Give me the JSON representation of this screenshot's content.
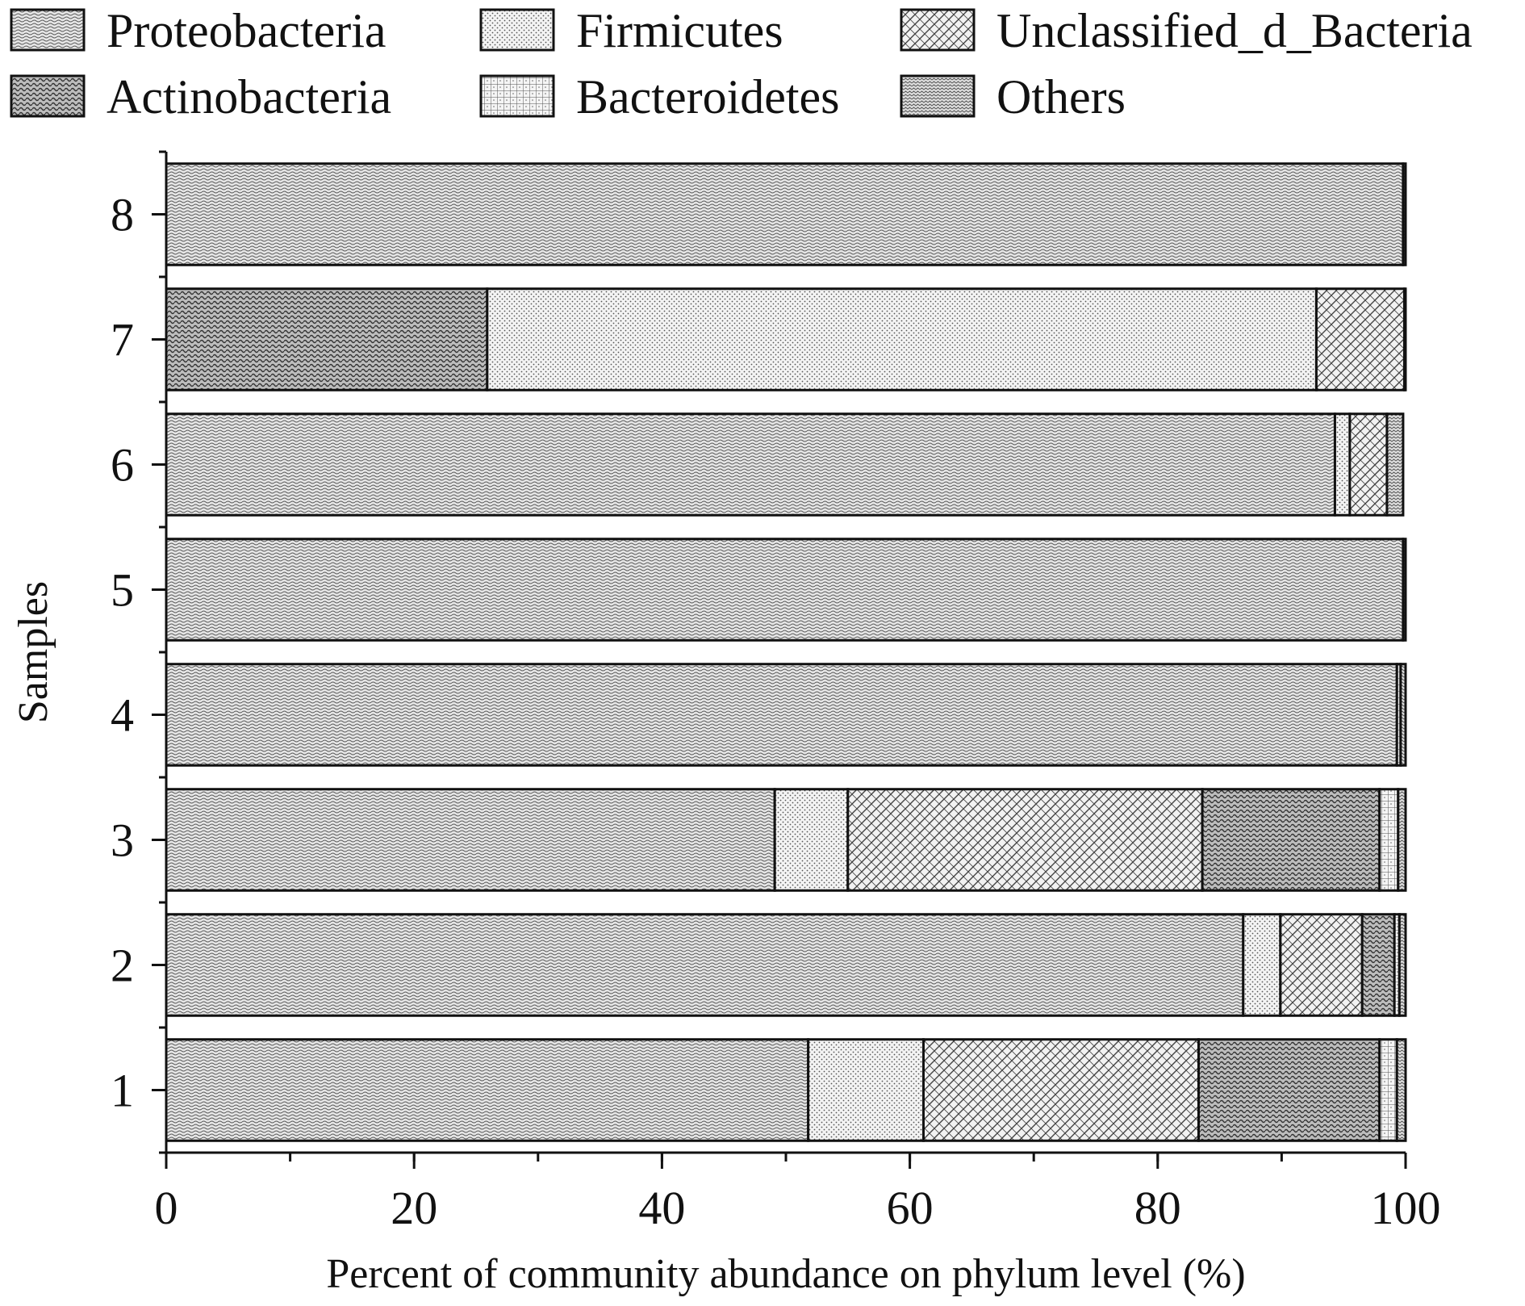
{
  "chart_data": {
    "type": "bar",
    "orientation": "horizontal",
    "stacked": true,
    "xlabel": "Percent of community abundance on phylum level (%)",
    "ylabel": "Samples",
    "xlim": [
      0,
      100
    ],
    "x_ticks": [
      0,
      20,
      40,
      60,
      80,
      100
    ],
    "categories": [
      "1",
      "2",
      "3",
      "4",
      "5",
      "6",
      "7",
      "8"
    ],
    "legend_position": "top",
    "grid": false,
    "series": [
      {
        "name": "Proteobacteria",
        "pattern": "wavy-dense",
        "values": [
          51.8,
          86.9,
          49.1,
          99.3,
          99.8,
          94.3,
          0.0,
          99.8
        ]
      },
      {
        "name": "Firmicutes",
        "pattern": "dots",
        "values": [
          9.3,
          3.0,
          5.9,
          0.0,
          0.0,
          1.2,
          66.9,
          0.0
        ]
      },
      {
        "name": "Unclassified_d_Bacteria",
        "pattern": "crosshatch",
        "values": [
          22.2,
          6.6,
          28.6,
          0.0,
          0.0,
          3.0,
          7.1,
          0.0
        ]
      },
      {
        "name": "Actinobacteria",
        "pattern": "wavy-coarse",
        "values": [
          14.6,
          2.6,
          14.3,
          0.0,
          0.0,
          0.0,
          25.9,
          0.0
        ]
      },
      {
        "name": "Bacteroidetes",
        "pattern": "grid",
        "values": [
          1.4,
          0.4,
          1.5,
          0.3,
          0.0,
          0.0,
          0.0,
          0.0
        ]
      },
      {
        "name": "Others",
        "pattern": "zigzag",
        "values": [
          0.7,
          0.5,
          0.6,
          0.4,
          0.2,
          1.3,
          0.1,
          0.2
        ]
      }
    ],
    "series_order_by_sample": {
      "7": [
        "Actinobacteria",
        "Firmicutes",
        "Unclassified_d_Bacteria",
        "Others"
      ]
    }
  }
}
